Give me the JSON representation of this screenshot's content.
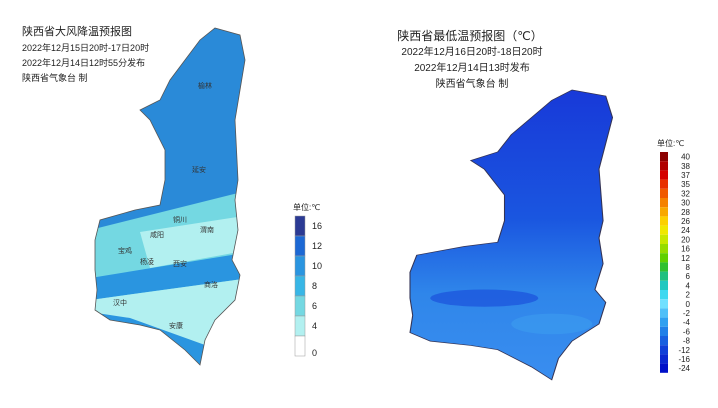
{
  "left_map": {
    "title": "陕西省大风降温预报图",
    "time_range": "2022年12月15日20时-17日20时",
    "issued": "2022年12月14日12时55分发布",
    "issuer": "陕西省气象台 制",
    "cities": [
      "榆林",
      "延安",
      "铜川",
      "渭南",
      "宝鸡",
      "咸阳",
      "杨凌",
      "西安",
      "商洛",
      "汉中",
      "安康"
    ],
    "legend": {
      "unit": "单位:℃",
      "items": [
        {
          "label": "16",
          "color": "#2b3a94"
        },
        {
          "label": "12",
          "color": "#1c68d4"
        },
        {
          "label": "10",
          "color": "#2a95e0"
        },
        {
          "label": "8",
          "color": "#38b6e6"
        },
        {
          "label": "6",
          "color": "#74d8e2"
        },
        {
          "label": "4",
          "color": "#b2f0f0"
        },
        {
          "label": "0",
          "color": "#ffffff"
        }
      ]
    }
  },
  "right_map": {
    "title": "陕西省最低温预报图（℃）",
    "time_range": "2022年12月16日20时-18日20时",
    "issued": "2022年12月14日13时发布",
    "issuer": "陕西省气象台 制",
    "legend": {
      "unit": "单位:℃",
      "items": [
        {
          "label": "40",
          "color": "#8b0000"
        },
        {
          "label": "38",
          "color": "#b00000"
        },
        {
          "label": "37",
          "color": "#d40000"
        },
        {
          "label": "35",
          "color": "#e83000"
        },
        {
          "label": "32",
          "color": "#f05a00"
        },
        {
          "label": "30",
          "color": "#f58200"
        },
        {
          "label": "28",
          "color": "#f8a800"
        },
        {
          "label": "26",
          "color": "#fcd000"
        },
        {
          "label": "24",
          "color": "#f0e800"
        },
        {
          "label": "20",
          "color": "#c8e800"
        },
        {
          "label": "16",
          "color": "#96dc00"
        },
        {
          "label": "12",
          "color": "#60d000"
        },
        {
          "label": "8",
          "color": "#30c030"
        },
        {
          "label": "6",
          "color": "#20c080"
        },
        {
          "label": "4",
          "color": "#20c8c0"
        },
        {
          "label": "2",
          "color": "#40d8f0"
        },
        {
          "label": "0",
          "color": "#70e0ff"
        },
        {
          "label": "-2",
          "color": "#50c0f8"
        },
        {
          "label": "-4",
          "color": "#30a0f0"
        },
        {
          "label": "-6",
          "color": "#2080e8"
        },
        {
          "label": "-8",
          "color": "#1860e0"
        },
        {
          "label": "-12",
          "color": "#1040d8"
        },
        {
          "label": "-16",
          "color": "#0a28d0"
        },
        {
          "label": "-24",
          "color": "#0010c8"
        }
      ]
    }
  }
}
